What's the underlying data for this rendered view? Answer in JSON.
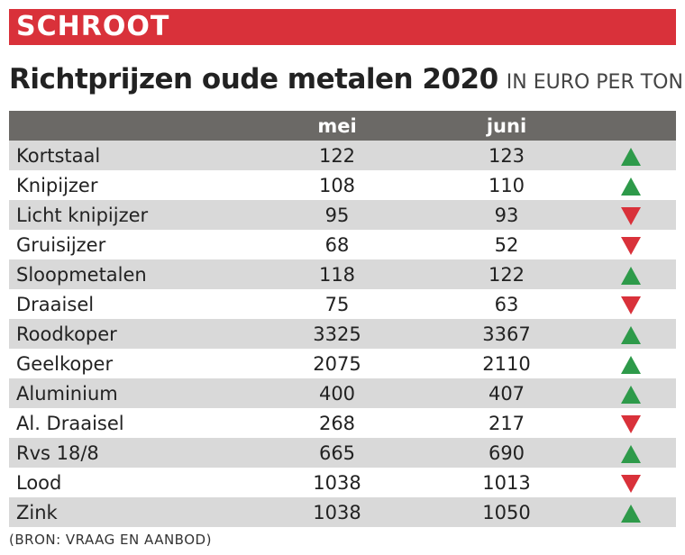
{
  "banner": {
    "label": "SCHROOT"
  },
  "heading": {
    "title": "Richtprijzen oude metalen 2020",
    "unit": "IN EURO PER TON"
  },
  "colors": {
    "banner": "#d9313a",
    "header": "#6b6966",
    "stripe": "#d9d9d9",
    "up": "#2e9a4a",
    "down": "#d9313a"
  },
  "chart_data": {
    "type": "table",
    "title": "Richtprijzen oude metalen 2020",
    "subtitle": "IN EURO PER TON",
    "columns": [
      "",
      "mei",
      "juni",
      ""
    ],
    "rows": [
      {
        "name": "Kortstaal",
        "mei": 122,
        "juni": 123,
        "trend": "up"
      },
      {
        "name": "Knipijzer",
        "mei": 108,
        "juni": 110,
        "trend": "up"
      },
      {
        "name": "Licht knipijzer",
        "mei": 95,
        "juni": 93,
        "trend": "down"
      },
      {
        "name": "Gruisijzer",
        "mei": 68,
        "juni": 52,
        "trend": "down"
      },
      {
        "name": "Sloopmetalen",
        "mei": 118,
        "juni": 122,
        "trend": "up"
      },
      {
        "name": "Draaisel",
        "mei": 75,
        "juni": 63,
        "trend": "down"
      },
      {
        "name": "Roodkoper",
        "mei": 3325,
        "juni": 3367,
        "trend": "up"
      },
      {
        "name": "Geelkoper",
        "mei": 2075,
        "juni": 2110,
        "trend": "up"
      },
      {
        "name": "Aluminium",
        "mei": 400,
        "juni": 407,
        "trend": "up"
      },
      {
        "name": "Al. Draaisel",
        "mei": 268,
        "juni": 217,
        "trend": "down"
      },
      {
        "name": "Rvs 18/8",
        "mei": 665,
        "juni": 690,
        "trend": "up"
      },
      {
        "name": "Lood",
        "mei": 1038,
        "juni": 1013,
        "trend": "down"
      },
      {
        "name": "Zink",
        "mei": 1038,
        "juni": 1050,
        "trend": "up"
      }
    ]
  },
  "source": "(BRON: VRAAG EN AANBOD)"
}
